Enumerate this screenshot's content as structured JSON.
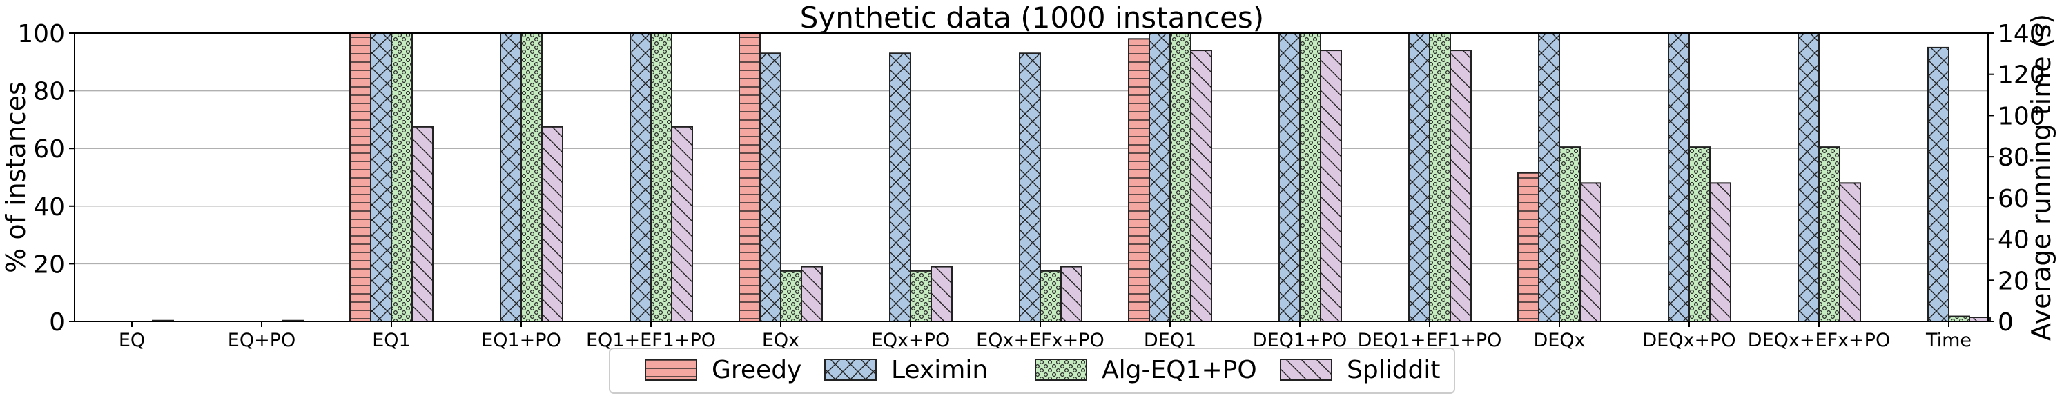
{
  "chart_data": {
    "type": "bar",
    "title": "Synthetic data (1000 instances)",
    "ylabel": "% of instances",
    "y2label": "Average running time (s)",
    "ylim": [
      0,
      100
    ],
    "y2lim": [
      0,
      140
    ],
    "yticks": [
      0,
      20,
      40,
      60,
      80,
      100
    ],
    "y2ticks": [
      0,
      20,
      40,
      60,
      80,
      100,
      120,
      140
    ],
    "grid": "horizontal",
    "legend_position": "bottom-center",
    "categories": [
      "EQ",
      "EQ+PO",
      "EQ1",
      "EQ1+PO",
      "EQ1+EF1+PO",
      "EQx",
      "EQx+PO",
      "EQx+EFx+PO",
      "DEQ1",
      "DEQ1+PO",
      "DEQ1+EF1+PO",
      "DEQx",
      "DEQx+PO",
      "DEQx+EFx+PO",
      "Time"
    ],
    "series": [
      {
        "name": "Greedy",
        "color": "#f4a6a0",
        "pattern": "horizontal-lines",
        "values": [
          0,
          0,
          100,
          0,
          0,
          100,
          0,
          0,
          98,
          0,
          0,
          51.5,
          0,
          0,
          0
        ]
      },
      {
        "name": "Leximin",
        "color": "#aec8e4",
        "pattern": "crosses",
        "values": [
          0,
          0,
          100,
          100,
          100,
          93,
          93,
          93,
          100,
          100,
          100,
          100,
          100,
          100,
          133
        ]
      },
      {
        "name": "Alg-EQ1+PO",
        "color": "#c6ebc0",
        "pattern": "dots",
        "values": [
          0,
          0,
          100,
          100,
          100,
          17.5,
          17.5,
          17.5,
          100,
          100,
          100,
          60.5,
          60.5,
          60.5,
          2.5
        ]
      },
      {
        "name": "Spliddit",
        "color": "#ddc8e2",
        "pattern": "diagonal-lines",
        "values": [
          0.3,
          0.3,
          67.5,
          67.5,
          67.5,
          19,
          19,
          19,
          94,
          94,
          94,
          48,
          48,
          48,
          2
        ]
      }
    ]
  }
}
